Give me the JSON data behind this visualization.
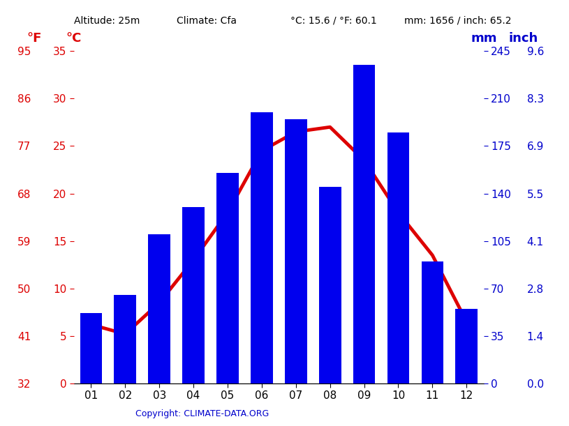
{
  "months": [
    "01",
    "02",
    "03",
    "04",
    "05",
    "06",
    "07",
    "08",
    "09",
    "10",
    "11",
    "12"
  ],
  "temp_values": [
    6.2,
    5.2,
    8.5,
    13.0,
    18.0,
    24.5,
    26.5,
    27.0,
    23.5,
    18.0,
    13.5,
    6.5
  ],
  "precip_values": [
    52,
    65,
    110,
    130,
    155,
    200,
    195,
    145,
    235,
    185,
    90,
    55
  ],
  "bar_color": "#0000ee",
  "line_color": "#dd0000",
  "background_color": "#ffffff",
  "grid_color": "#aaaaaa",
  "red_color": "#dd0000",
  "blue_color": "#0000cc",
  "celsius_ticks": [
    0,
    5,
    10,
    15,
    20,
    25,
    30,
    35
  ],
  "fahrenheit_ticks": [
    32,
    41,
    50,
    59,
    68,
    77,
    86,
    95
  ],
  "mm_ticks": [
    0,
    35,
    70,
    105,
    140,
    175,
    210,
    245
  ],
  "inch_ticks": [
    "0.0",
    "1.4",
    "2.8",
    "4.1",
    "5.5",
    "6.9",
    "8.3",
    "9.6"
  ],
  "ylim_c": [
    0,
    35
  ],
  "ylim_mm": [
    0,
    245
  ],
  "header_altitude": "Altitude: 25m",
  "header_climate": "Climate: Cfa",
  "header_temp": "°C: 15.6 / °F: 60.1",
  "header_precip": "mm: 1656 / inch: 65.2",
  "copyright_text": "Copyright: CLIMATE-DATA.ORG",
  "label_F": "°F",
  "label_C": "°C",
  "label_mm": "mm",
  "label_inch": "inch"
}
